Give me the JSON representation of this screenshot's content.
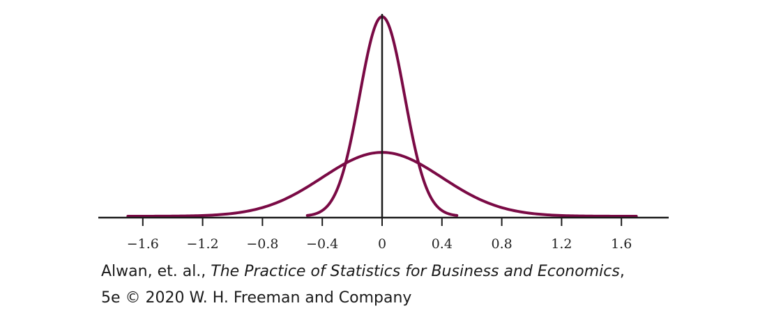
{
  "chart_data": {
    "type": "line",
    "title": "",
    "xlabel": "",
    "ylabel": "",
    "xlim": [
      -1.6,
      1.6
    ],
    "x_ticks": [
      -1.6,
      -1.2,
      -0.8,
      -0.4,
      0,
      0.4,
      0.8,
      1.2,
      1.6
    ],
    "x_tick_labels": [
      "−1.6",
      "−1.2",
      "−0.8",
      "−0.4",
      "0",
      "0.4",
      "0.8",
      "1.2",
      "1.6"
    ],
    "grid": false,
    "legend": "none",
    "line_color": "#7a0a45",
    "axis_color": "#1a1a1a",
    "series": [
      {
        "shape": "bell",
        "center": 0,
        "spread": 0.15,
        "x_range": [
          -0.5,
          0.5
        ],
        "peak_relative": 1.0
      },
      {
        "shape": "bell",
        "center": 0,
        "spread": 0.4,
        "x_range": [
          -1.7,
          1.7
        ],
        "peak_relative": 0.32
      }
    ]
  },
  "caption": {
    "line1_prefix": "Alwan, et. al., ",
    "line1_title": "The Practice of Statistics for Business and Economics",
    "line1_suffix": ",",
    "line2": "5e © 2020 W. H. Freeman and Company"
  }
}
